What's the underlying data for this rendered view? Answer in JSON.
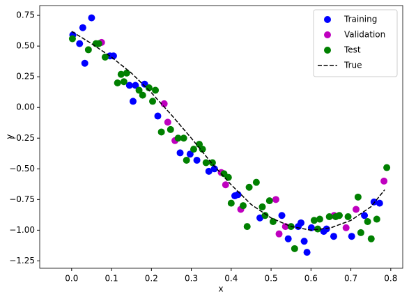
{
  "chart_data": {
    "type": "scatter",
    "xlabel": "x",
    "ylabel": "y",
    "xlim": [
      -0.08,
      0.83
    ],
    "ylim": [
      -1.31,
      0.83
    ],
    "xticks": [
      {
        "value": 0,
        "label": "0.0"
      },
      0.1,
      0.2,
      0.3,
      0.4,
      0.5,
      0.6,
      0.7,
      0.8
    ],
    "yticks": [
      0.75,
      {
        "value": 0.5,
        "label": "0.50"
      },
      0.25,
      {
        "value": 0,
        "label": "0.00"
      },
      {
        "value": -0.25,
        "label": "−0.25"
      },
      {
        "value": -0.5,
        "label": "−0.50"
      },
      {
        "value": -0.75,
        "label": "−0.75"
      },
      {
        "value": -1,
        "label": "−1.00"
      },
      {
        "value": -1.25,
        "label": "−1.25"
      }
    ],
    "legend": "upper right",
    "series": [
      {
        "name": "Training",
        "kind": "points",
        "color": "#0000ff",
        "x": [
          0.003,
          0.02,
          0.028,
          0.033,
          0.05,
          0.096,
          0.105,
          0.145,
          0.154,
          0.16,
          0.183,
          0.216,
          0.272,
          0.297,
          0.314,
          0.344,
          0.358,
          0.409,
          0.417,
          0.472,
          0.527,
          0.543,
          0.568,
          0.575,
          0.583,
          0.59,
          0.601,
          0.632,
          0.639,
          0.657,
          0.702,
          0.734,
          0.758,
          0.772
        ],
        "y": [
          0.59,
          0.52,
          0.65,
          0.36,
          0.73,
          0.42,
          0.42,
          0.18,
          0.05,
          0.18,
          0.19,
          -0.07,
          -0.37,
          -0.38,
          -0.43,
          -0.52,
          -0.5,
          -0.72,
          -0.71,
          -0.9,
          -0.88,
          -1.07,
          -0.97,
          -0.94,
          -1.09,
          -1.18,
          -0.98,
          -1.01,
          -0.99,
          -1.05,
          -1.05,
          -0.88,
          -0.77,
          -0.78
        ]
      },
      {
        "name": "Validation",
        "kind": "points",
        "color": "#bf00bf",
        "x": [
          0.075,
          0.232,
          0.241,
          0.259,
          0.375,
          0.386,
          0.424,
          0.512,
          0.52,
          0.536,
          0.658,
          0.688,
          0.713,
          0.783
        ],
        "y": [
          0.53,
          0.03,
          -0.12,
          -0.27,
          -0.53,
          -0.63,
          -0.83,
          -0.75,
          -1.03,
          -0.97,
          -0.88,
          -0.98,
          -0.83,
          -0.6
        ]
      },
      {
        "name": "Test",
        "kind": "points",
        "color": "#008000",
        "x": [
          0.002,
          0.042,
          0.061,
          0.068,
          0.084,
          0.115,
          0.124,
          0.131,
          0.138,
          0.169,
          0.178,
          0.194,
          0.203,
          0.21,
          0.225,
          0.248,
          0.267,
          0.281,
          0.288,
          0.306,
          0.32,
          0.328,
          0.337,
          0.353,
          0.382,
          0.393,
          0.4,
          0.43,
          0.44,
          0.445,
          0.463,
          0.478,
          0.485,
          0.496,
          0.505,
          0.55,
          0.559,
          0.608,
          0.617,
          0.622,
          0.646,
          0.662,
          0.671,
          0.693,
          0.718,
          0.725,
          0.742,
          0.751,
          0.765,
          0.79
        ],
        "y": [
          0.56,
          0.47,
          0.52,
          0.52,
          0.41,
          0.2,
          0.27,
          0.21,
          0.28,
          0.14,
          0.1,
          0.16,
          0.05,
          0.14,
          -0.2,
          -0.18,
          -0.25,
          -0.25,
          -0.43,
          -0.34,
          -0.3,
          -0.34,
          -0.45,
          -0.45,
          -0.54,
          -0.57,
          -0.78,
          -0.8,
          -0.97,
          -0.65,
          -0.61,
          -0.81,
          -0.88,
          -0.76,
          -0.93,
          -0.97,
          -1.15,
          -0.92,
          -0.99,
          -0.91,
          -0.89,
          -0.89,
          -0.88,
          -0.89,
          -0.73,
          -1.02,
          -0.93,
          -1.07,
          -0.91,
          -0.49
        ]
      },
      {
        "name": "True",
        "kind": "dashed-line",
        "color": "#000000",
        "x": [
          0,
          0.05,
          0.1,
          0.15,
          0.2,
          0.25,
          0.3,
          0.35,
          0.4,
          0.45,
          0.5,
          0.55,
          0.6,
          0.65,
          0.7,
          0.75,
          0.785
        ],
        "y": [
          0.62,
          0.52,
          0.41,
          0.28,
          0.12,
          -0.06,
          -0.25,
          -0.45,
          -0.63,
          -0.79,
          -0.9,
          -0.97,
          -1.0,
          -0.98,
          -0.92,
          -0.81,
          -0.67
        ]
      }
    ]
  }
}
